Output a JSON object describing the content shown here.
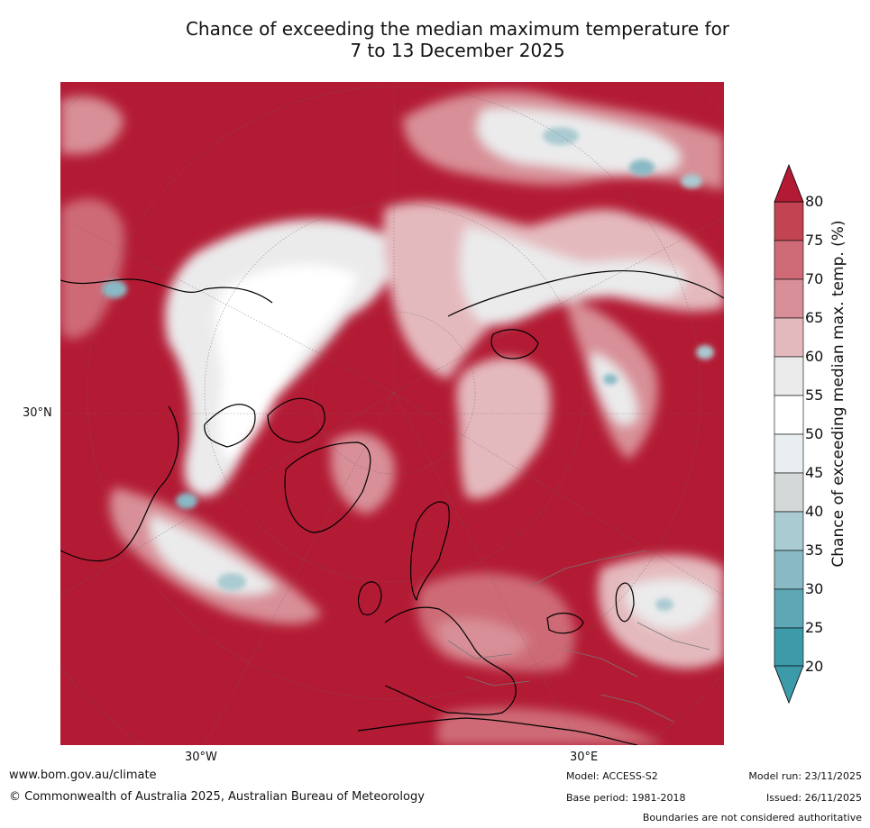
{
  "title": {
    "line1": "Chance of exceeding the median maximum temperature for",
    "line2": "7 to 13 December 2025"
  },
  "map": {
    "lat_labels": [
      "30°N"
    ],
    "lon_labels": [
      "30°W",
      "30°E"
    ]
  },
  "colorbar": {
    "label": "Chance of exceeding median max. temp. (%)",
    "ticks": [
      "80",
      "75",
      "70",
      "65",
      "60",
      "55",
      "50",
      "45",
      "40",
      "35",
      "30",
      "25",
      "20"
    ],
    "colors": [
      "#b31b34",
      "#c24452",
      "#ce6b76",
      "#d88f97",
      "#e4b9bd",
      "#ebebec",
      "#ffffff",
      "#e9eef0",
      "#d4d8d8",
      "#aacbd1",
      "#88b9c5",
      "#5ea8b6",
      "#3c9aa9"
    ]
  },
  "footer": {
    "website": "www.bom.gov.au/climate",
    "copyright": "© Commonwealth of Australia 2025, Australian Bureau of Meteorology",
    "model": "Model: ACCESS-S2",
    "base_period": "Base period: 1981-2018",
    "model_run": "Model run: 23/11/2025",
    "issued": "Issued: 26/11/2025",
    "disclaimer": "Boundaries are not considered authoritative"
  }
}
